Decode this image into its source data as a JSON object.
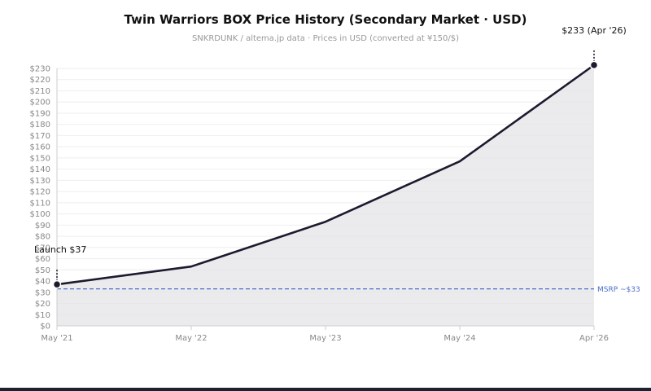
{
  "chart_data": {
    "type": "area",
    "title": "Twin Warriors BOX Price History (Secondary Market · USD)",
    "subtitle": "SNKRDUNK / altema.jp data · Prices in USD (converted at ¥150/$)",
    "xlabel": "",
    "ylabel": "",
    "x": [
      "May '21",
      "May '22",
      "May '23",
      "May '24",
      "Apr '26"
    ],
    "x_index": [
      0,
      1,
      2,
      3,
      4
    ],
    "values": [
      37,
      53,
      93,
      147,
      233
    ],
    "ylim": [
      0,
      230
    ],
    "y_ticks": [
      0,
      10,
      20,
      30,
      40,
      50,
      60,
      70,
      80,
      90,
      100,
      110,
      120,
      130,
      140,
      150,
      160,
      170,
      180,
      190,
      200,
      210,
      220,
      230
    ],
    "y_tick_prefix": "$",
    "grid": true,
    "legend": "none",
    "reference_line": {
      "value": 33,
      "label": "MSRP ~$33",
      "color": "#4a6fc9",
      "style": "dashed"
    },
    "annotations": [
      {
        "point": 0,
        "label": "Launch $37"
      },
      {
        "point": 4,
        "label": "$233 (Apr '26)"
      }
    ],
    "colors": {
      "line": "#1c1a2e",
      "fill": "#e4e4e8",
      "grid": "#eeeeee",
      "axis": "#cccccc"
    }
  }
}
